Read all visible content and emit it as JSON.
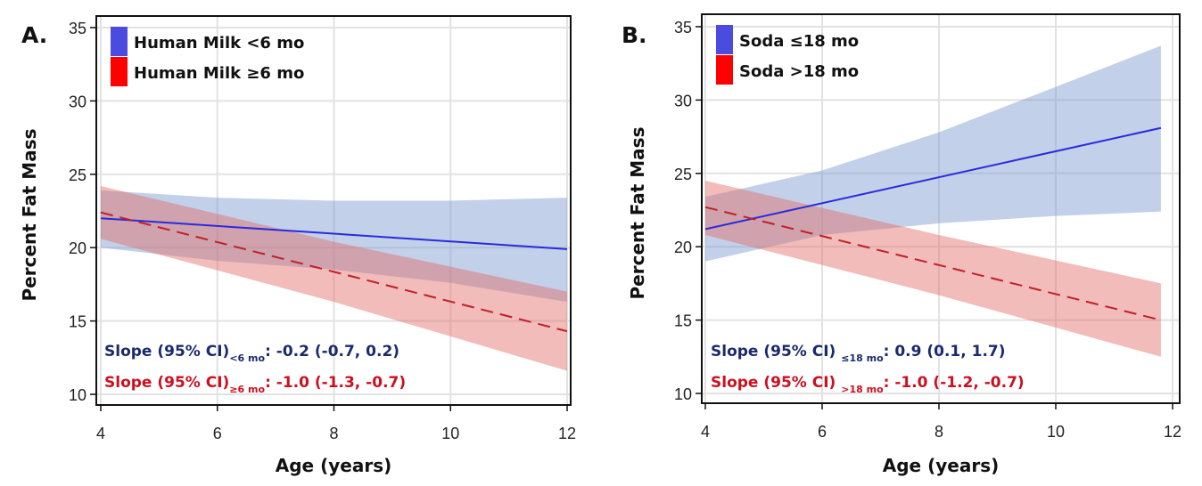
{
  "chart_data": [
    {
      "type": "line",
      "panel_label": "A.",
      "xlabel": "Age (years)",
      "ylabel": "Percent Fat Mass",
      "xlim": [
        4,
        12
      ],
      "ylim": [
        10,
        35
      ],
      "xticks": [
        "4",
        "6",
        "8",
        "10",
        "12"
      ],
      "yticks": [
        "10",
        "15",
        "20",
        "25",
        "30",
        "35"
      ],
      "grid": true,
      "legend_placement": "top-left",
      "series": [
        {
          "name": "Human Milk <6 mo",
          "color": "#4b4be0",
          "line_color": "#2a2adb",
          "band_color": "#7b96cf",
          "dash": false,
          "x": [
            4,
            12
          ],
          "y": [
            22.0,
            19.9
          ],
          "ci_x": [
            4,
            6,
            8,
            10,
            12
          ],
          "ci_upper": [
            23.9,
            23.4,
            23.2,
            23.2,
            23.4
          ],
          "ci_lower": [
            20.0,
            19.1,
            18.5,
            17.6,
            16.3
          ]
        },
        {
          "name": "Human Milk ≥6 mo",
          "color": "#ff0000",
          "line_color": "#c0202a",
          "band_color": "#e06a63",
          "dash": true,
          "x": [
            4,
            12
          ],
          "y": [
            22.4,
            14.3
          ],
          "ci_x": [
            4,
            8,
            12
          ],
          "ci_upper": [
            24.2,
            20.4,
            17.0
          ],
          "ci_lower": [
            20.6,
            16.3,
            11.6
          ]
        }
      ],
      "annotations": [
        {
          "prefix": "Slope (95% CI)",
          "sub": "<6 mo",
          "suffix": ": -0.2 (-0.7, 0.2)",
          "color": "#1a2a6c"
        },
        {
          "prefix": "Slope (95% CI)",
          "sub": "≥6 mo",
          "suffix": ": -1.0 (-1.3, -0.7)",
          "color": "#cc1020"
        }
      ]
    },
    {
      "type": "line",
      "panel_label": "B.",
      "xlabel": "Age (years)",
      "ylabel": "Percent Fat Mass",
      "xlim": [
        4,
        12
      ],
      "ylim": [
        10,
        35
      ],
      "xticks": [
        "4",
        "6",
        "8",
        "10",
        "12"
      ],
      "yticks": [
        "10",
        "15",
        "20",
        "25",
        "30",
        "35"
      ],
      "grid": true,
      "legend_placement": "top-left",
      "series": [
        {
          "name": "Soda ≤18 mo",
          "color": "#4b4be0",
          "line_color": "#2a2adb",
          "band_color": "#7b96cf",
          "dash": false,
          "x": [
            4,
            11.8
          ],
          "y": [
            21.2,
            28.1
          ],
          "ci_x": [
            4,
            6,
            8,
            10,
            11.8
          ],
          "ci_upper": [
            23.4,
            25.2,
            27.8,
            30.9,
            33.7
          ],
          "ci_lower": [
            19.0,
            20.8,
            21.6,
            22.1,
            22.4
          ]
        },
        {
          "name": "Soda >18 mo",
          "color": "#ff0000",
          "line_color": "#c0202a",
          "band_color": "#e06a63",
          "dash": true,
          "x": [
            4,
            11.8
          ],
          "y": [
            22.7,
            15.0
          ],
          "ci_x": [
            4,
            8,
            11.8
          ],
          "ci_upper": [
            24.5,
            20.8,
            17.5
          ],
          "ci_lower": [
            20.8,
            16.7,
            12.5
          ]
        }
      ],
      "annotations": [
        {
          "prefix": "Slope (95% CI) ",
          "sub": "≤18 mo",
          "suffix": ": 0.9 (0.1, 1.7)",
          "color": "#1a2a6c"
        },
        {
          "prefix": "Slope (95% CI) ",
          "sub": ">18 mo",
          "suffix": ": -1.0 (-1.2, -0.7)",
          "color": "#cc1020"
        }
      ]
    }
  ]
}
